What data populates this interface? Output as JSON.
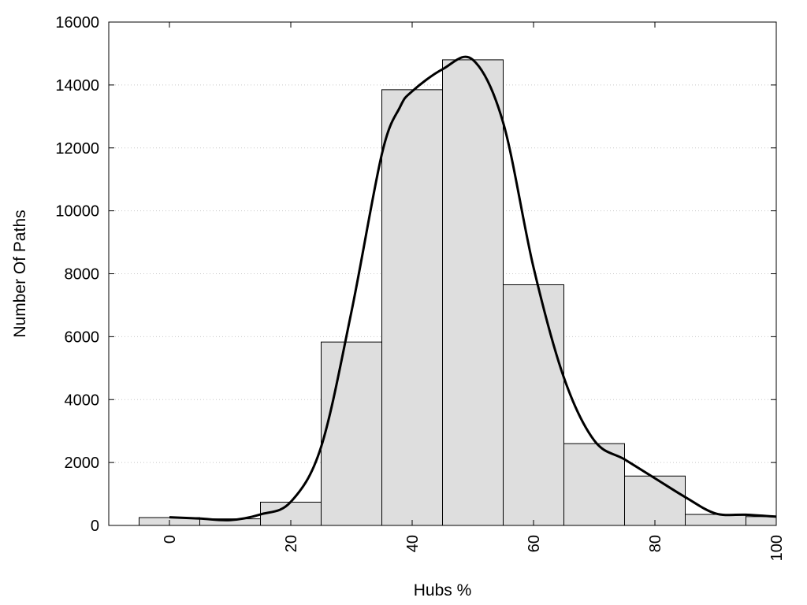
{
  "chart_data": {
    "type": "bar",
    "xlabel": "Hubs %",
    "ylabel": "Number Of Paths",
    "xlim": [
      -10,
      100
    ],
    "ylim": [
      0,
      16000
    ],
    "xticks": [
      0,
      20,
      40,
      60,
      80,
      100
    ],
    "yticks": [
      0,
      2000,
      4000,
      6000,
      8000,
      10000,
      12000,
      14000,
      16000
    ],
    "grid": "horizontal-dotted",
    "bar_width": 10,
    "bins": [
      0,
      10,
      20,
      30,
      40,
      50,
      60,
      70,
      80,
      90,
      100
    ],
    "values": [
      250,
      210,
      740,
      5830,
      13850,
      14800,
      7650,
      2600,
      1570,
      350,
      280
    ],
    "curve": {
      "x": [
        0,
        5,
        10,
        15,
        20,
        25,
        30,
        35,
        38,
        40,
        45,
        50,
        55,
        60,
        65,
        70,
        75,
        80,
        85,
        90,
        95,
        100
      ],
      "y": [
        260,
        220,
        170,
        350,
        750,
        2500,
        6800,
        11800,
        13300,
        13800,
        14500,
        14800,
        12800,
        8200,
        4700,
        2700,
        2100,
        1500,
        900,
        380,
        340,
        280
      ]
    }
  }
}
